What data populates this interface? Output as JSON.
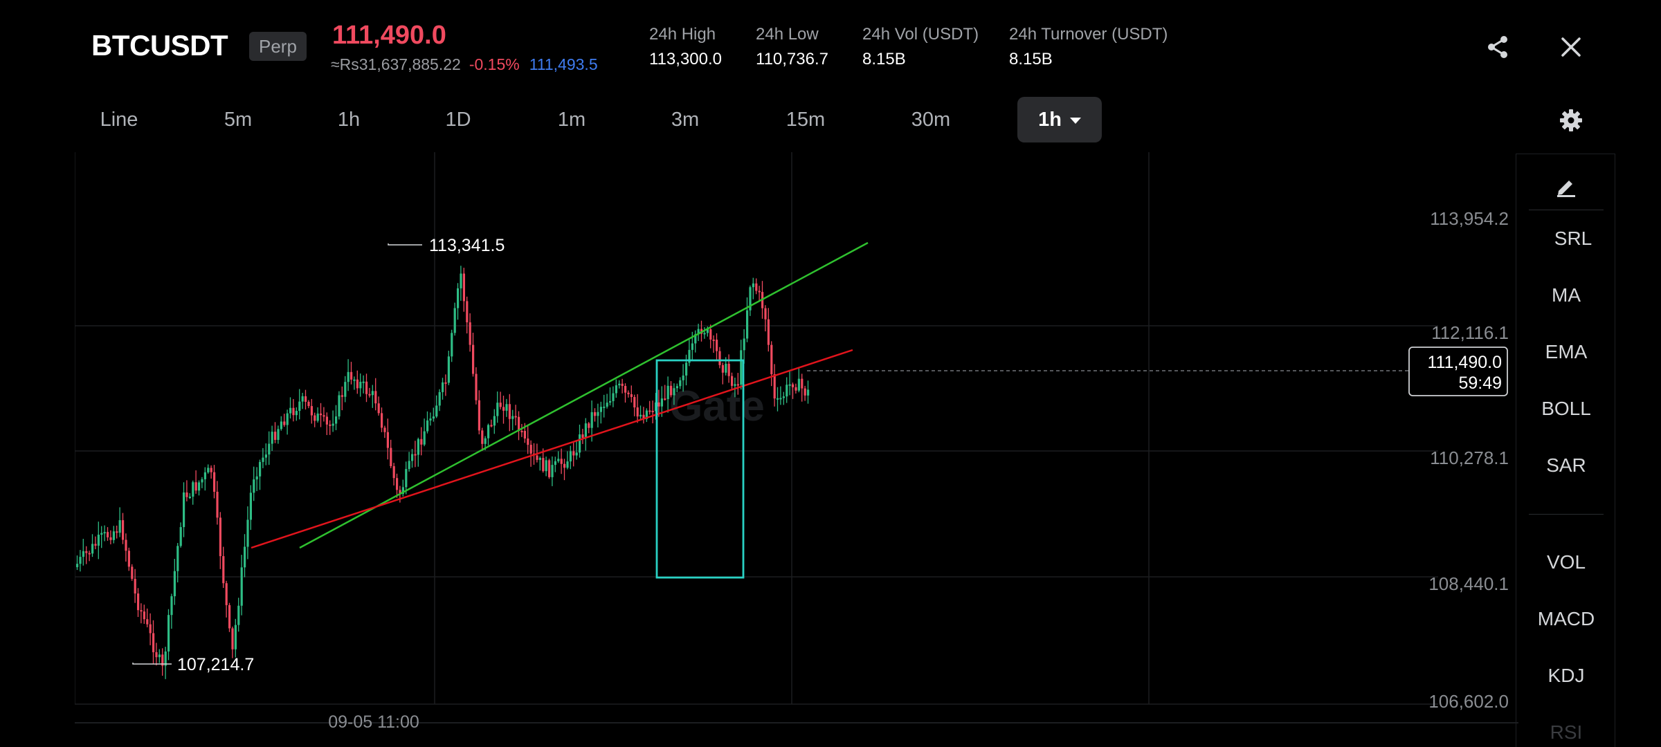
{
  "header": {
    "symbol": "BTCUSDT",
    "badge": "Perp",
    "last_price": "111,490.0",
    "fiat_value": "≈Rs31,637,885.22",
    "change_pct": "-0.15%",
    "mark_price": "111,493.5",
    "stats": [
      {
        "label": "24h High",
        "value": "113,300.0"
      },
      {
        "label": "24h Low",
        "value": "110,736.7"
      },
      {
        "label": "24h Vol (USDT)",
        "value": "8.15B"
      },
      {
        "label": "24h Turnover (USDT)",
        "value": "8.15B"
      }
    ],
    "icons": {
      "share": "share-icon",
      "close": "close-icon"
    }
  },
  "tabs": [
    {
      "label": "Line"
    },
    {
      "label": "5m"
    },
    {
      "label": "1h"
    },
    {
      "label": "1D"
    },
    {
      "label": "1m"
    },
    {
      "label": "3m"
    },
    {
      "label": "15m"
    },
    {
      "label": "30m"
    },
    {
      "label": "1h",
      "active": true,
      "has_dropdown": true
    }
  ],
  "chart": {
    "watermark": "Gate",
    "price_axis": [
      "113,954.2",
      "112,116.1",
      "110,278.1",
      "108,440.1",
      "106,602.0"
    ],
    "time_axis": [
      "09-05 11:00"
    ],
    "high_label": "113,341.5",
    "low_label": "107,214.7",
    "current_price": "111,490.0",
    "countdown": "59:49",
    "colors": {
      "up": "#2ebd85",
      "down": "#f04a5f",
      "green_line": "#2fc12f",
      "red_line": "#e1141c",
      "box": "#2ad1c4",
      "grid": "#1c1e21",
      "axis_text": "#8a8d92"
    }
  },
  "right_panel": {
    "edit_icon": "pencil-icon",
    "items": [
      "SRL",
      "MA",
      "EMA",
      "BOLL",
      "SAR",
      "VOL",
      "MACD",
      "KDJ",
      "RSI"
    ]
  },
  "settings_icon": "gear-icon"
}
